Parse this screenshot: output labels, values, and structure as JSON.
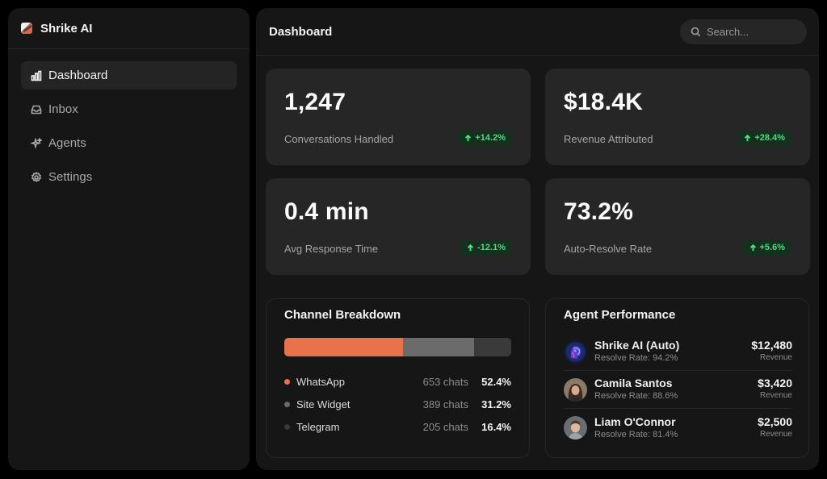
{
  "app": {
    "name": "Shrike AI"
  },
  "sidebar": {
    "items": [
      {
        "label": "Dashboard",
        "icon": "bar-chart-icon",
        "active": true
      },
      {
        "label": "Inbox",
        "icon": "inbox-icon",
        "active": false
      },
      {
        "label": "Agents",
        "icon": "sparkles-icon",
        "active": false
      },
      {
        "label": "Settings",
        "icon": "gear-icon",
        "active": false
      }
    ]
  },
  "header": {
    "title": "Dashboard",
    "search_placeholder": "Search..."
  },
  "kpis": [
    {
      "value": "1,247",
      "label": "Conversations Handled",
      "delta": "+14.2%"
    },
    {
      "value": "$18.4K",
      "label": "Revenue Attributed",
      "delta": "+28.4%"
    },
    {
      "value": "0.4 min",
      "label": "Avg Response Time",
      "delta": "-12.1%"
    },
    {
      "value": "73.2%",
      "label": "Auto-Resolve Rate",
      "delta": "+5.6%"
    }
  ],
  "channel_breakdown": {
    "title": "Channel Breakdown",
    "channels": [
      {
        "name": "WhatsApp",
        "chats": "653 chats",
        "percent": "52.4%",
        "share": 52.4,
        "color": "#e8734a"
      },
      {
        "name": "Site Widget",
        "chats": "389 chats",
        "percent": "31.2%",
        "share": 31.2,
        "color": "#6b6b6b"
      },
      {
        "name": "Telegram",
        "chats": "205 chats",
        "percent": "16.4%",
        "share": 16.4,
        "color": "#3a3a3a"
      }
    ]
  },
  "agent_performance": {
    "title": "Agent Performance",
    "agents": [
      {
        "name": "Shrike AI (Auto)",
        "resolve": "Resolve Rate: 94.2%",
        "revenue": "$12,480",
        "revenue_label": "Revenue",
        "avatar": "ai-head-avatar"
      },
      {
        "name": "Camila Santos",
        "resolve": "Resolve Rate: 88.6%",
        "revenue": "$3,420",
        "revenue_label": "Revenue",
        "avatar": "woman-avatar"
      },
      {
        "name": "Liam O'Connor",
        "resolve": "Resolve Rate: 81.4%",
        "revenue": "$2,500",
        "revenue_label": "Revenue",
        "avatar": "man-avatar"
      }
    ]
  },
  "colors": {
    "accent": "#e8734a",
    "positive": "#4ade80",
    "positive_bg": "#16301f",
    "card": "#262626",
    "panel": "#161616"
  }
}
